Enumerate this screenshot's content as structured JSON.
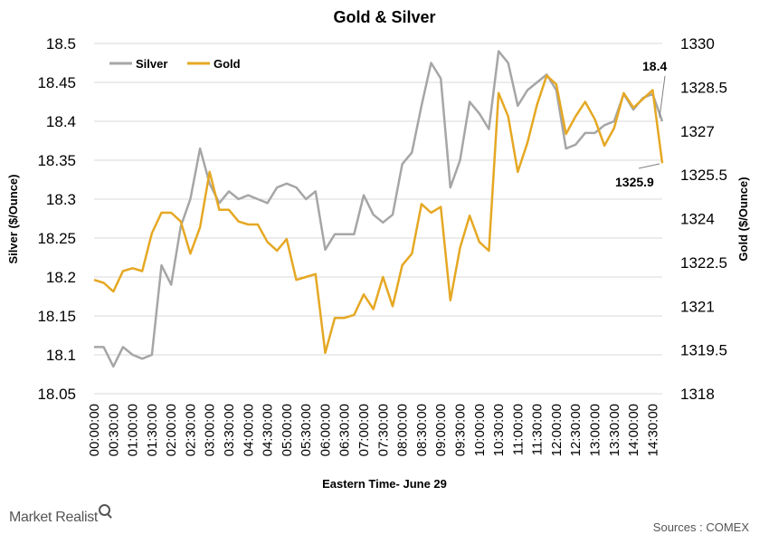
{
  "colors": {
    "silver": "#a6a6a6",
    "gold": "#e5a823",
    "grid": "#d9d9d9"
  },
  "brand": "Market Realist",
  "source": "Sources : COMEX",
  "chart_data": {
    "type": "line",
    "title": "Gold & Silver",
    "xlabel": "Eastern Time- June 29",
    "ylabel_left": "Silver ($/Ounce)",
    "ylabel_right": "Gold ($/Ounce)",
    "ylim_left": [
      18.05,
      18.5
    ],
    "ylim_right": [
      1318,
      1330
    ],
    "yticks_left": [
      "18.5",
      "18.45",
      "18.4",
      "18.35",
      "18.3",
      "18.25",
      "18.2",
      "18.15",
      "18.1",
      "18.05"
    ],
    "yticks_right": [
      "1330",
      "1328.5",
      "1327",
      "1325.5",
      "1324",
      "1322.5",
      "1321",
      "1319.5",
      "1318"
    ],
    "grid": true,
    "legend": "top-left",
    "x_tick_labels": [
      "00:00:00",
      "00:30:00",
      "01:00:00",
      "01:30:00",
      "02:00:00",
      "02:30:00",
      "03:00:00",
      "03:30:00",
      "04:00:00",
      "04:30:00",
      "05:00:00",
      "05:30:00",
      "06:00:00",
      "06:30:00",
      "07:00:00",
      "07:30:00",
      "08:00:00",
      "08:30:00",
      "09:00:00",
      "09:30:00",
      "10:00:00",
      "10:30:00",
      "11:00:00",
      "11:30:00",
      "12:00:00",
      "12:30:00",
      "13:00:00",
      "13:30:00",
      "14:00:00",
      "14:30:00"
    ],
    "series": [
      {
        "name": "Silver",
        "axis": "left",
        "values": [
          18.11,
          18.11,
          18.085,
          18.11,
          18.1,
          18.095,
          18.1,
          18.215,
          18.19,
          18.265,
          18.3,
          18.365,
          18.32,
          18.295,
          18.31,
          18.3,
          18.305,
          18.3,
          18.295,
          18.315,
          18.32,
          18.315,
          18.3,
          18.31,
          18.235,
          18.255,
          18.255,
          18.255,
          18.305,
          18.28,
          18.27,
          18.28,
          18.345,
          18.36,
          18.42,
          18.475,
          18.455,
          18.315,
          18.35,
          18.425,
          18.41,
          18.39,
          18.49,
          18.475,
          18.42,
          18.44,
          18.45,
          18.46,
          18.44,
          18.365,
          18.37,
          18.385,
          18.385,
          18.395,
          18.4,
          18.435,
          18.415,
          18.43,
          18.435,
          18.4
        ]
      },
      {
        "name": "Gold",
        "axis": "right",
        "values": [
          1321.9,
          1321.8,
          1321.5,
          1322.2,
          1322.3,
          1322.2,
          1323.5,
          1324.2,
          1324.2,
          1323.9,
          1322.8,
          1323.7,
          1325.6,
          1324.3,
          1324.3,
          1323.9,
          1323.8,
          1323.8,
          1323.2,
          1322.9,
          1323.3,
          1321.9,
          1322,
          1322.1,
          1319.4,
          1320.6,
          1320.6,
          1320.7,
          1321.4,
          1320.9,
          1322,
          1321,
          1322.4,
          1322.8,
          1324.5,
          1324.2,
          1324.4,
          1321.2,
          1323,
          1324.1,
          1323.2,
          1322.9,
          1328.3,
          1327.5,
          1325.6,
          1326.6,
          1327.9,
          1328.9,
          1328.6,
          1326.9,
          1327.5,
          1328,
          1327.4,
          1326.5,
          1327.1,
          1328.3,
          1327.8,
          1328.1,
          1328.4,
          1325.9
        ]
      }
    ],
    "annotations": [
      "18.4",
      "1325.9"
    ]
  }
}
